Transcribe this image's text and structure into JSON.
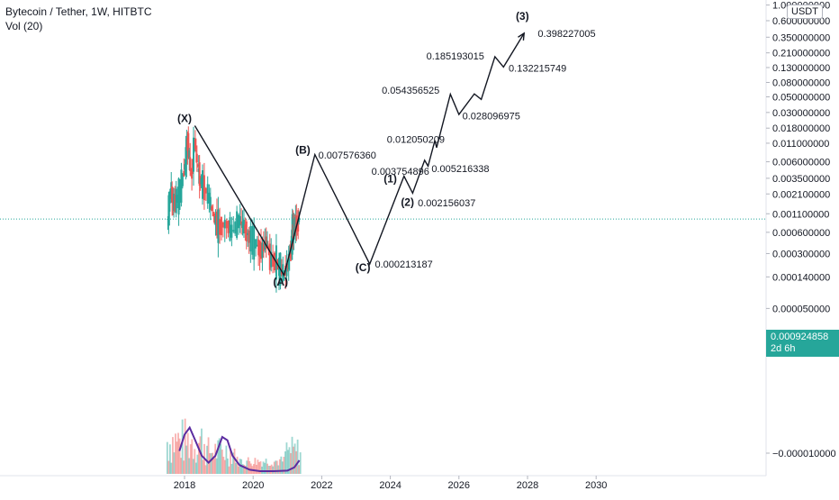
{
  "legend": {
    "title": "Bytecoin / Tether, 1W, HITBTC",
    "volume": "Vol (20)"
  },
  "price_axis": {
    "unit": "USDT"
  },
  "last_price": {
    "value": "0.000924858",
    "countdown": "2d 6h"
  },
  "colors": {
    "up": "#26a69a",
    "down": "#ef5350",
    "line": "#131722",
    "volume_ma": "#5b2ca0",
    "last_price_line": "#26a69a"
  },
  "chart_data": {
    "type": "line",
    "title": "Bytecoin / Tether, 1W, HITBTC",
    "scale": "log",
    "y_ticks": [
      "1.000000000",
      "0.600000000",
      "0.350000000",
      "0.210000000",
      "0.130000000",
      "0.080000000",
      "0.050000000",
      "0.030000000",
      "0.018000000",
      "0.011000000",
      "0.006000000",
      "0.003500000",
      "0.002100000",
      "0.001100000",
      "0.000600000",
      "0.000300000",
      "0.000140000",
      "0.000050000",
      "−0.000010000"
    ],
    "x_ticks": [
      "2018",
      "2020",
      "2022",
      "2024",
      "2026",
      "2028",
      "2030"
    ],
    "wave_path": [
      {
        "x": 2018.3,
        "y": 0.0195
      },
      {
        "x": 2020.9,
        "y": 0.000148
      },
      {
        "x": 2021.8,
        "y": 0.00757636
      },
      {
        "x": 2023.4,
        "y": 0.000213187
      },
      {
        "x": 2024.4,
        "y": 0.003754896
      },
      {
        "x": 2024.65,
        "y": 0.002156037
      },
      {
        "x": 2025.0,
        "y": 0.0063
      },
      {
        "x": 2025.1,
        "y": 0.0052
      },
      {
        "x": 2025.3,
        "y": 0.01205
      },
      {
        "x": 2025.35,
        "y": 0.0095
      },
      {
        "x": 2025.75,
        "y": 0.054356525
      },
      {
        "x": 2026.0,
        "y": 0.028096975
      },
      {
        "x": 2026.45,
        "y": 0.055
      },
      {
        "x": 2026.65,
        "y": 0.046
      },
      {
        "x": 2027.05,
        "y": 0.185193015
      },
      {
        "x": 2027.3,
        "y": 0.132215749
      },
      {
        "x": 2027.9,
        "y": 0.398227005
      }
    ],
    "wave_labels": [
      {
        "text": "(X)",
        "x": 2018.0,
        "y": 0.022
      },
      {
        "text": "(A)",
        "x": 2020.8,
        "y": 0.000105
      },
      {
        "text": "(B)",
        "x": 2021.45,
        "y": 0.0078
      },
      {
        "text": "(C)",
        "x": 2023.2,
        "y": 0.000168
      },
      {
        "text": "(1)",
        "x": 2024.0,
        "y": 0.00305
      },
      {
        "text": "(2)",
        "x": 2024.5,
        "y": 0.00143
      },
      {
        "text": "(3)",
        "x": 2027.85,
        "y": 0.62
      }
    ],
    "value_labels": [
      {
        "text": "0.007576360",
        "x": 2021.9,
        "y": 0.0075
      },
      {
        "text": "0.000213187",
        "x": 2023.55,
        "y": 0.000213
      },
      {
        "text": "0.003754896",
        "x": 2023.45,
        "y": 0.0044
      },
      {
        "text": "0.002156037",
        "x": 2024.8,
        "y": 0.00158
      },
      {
        "text": "0.012050209",
        "x": 2023.9,
        "y": 0.0126
      },
      {
        "text": "0.005216338",
        "x": 2025.2,
        "y": 0.0048
      },
      {
        "text": "0.054356525",
        "x": 2023.75,
        "y": 0.062
      },
      {
        "text": "0.028096975",
        "x": 2026.1,
        "y": 0.027
      },
      {
        "text": "0.185193015",
        "x": 2025.05,
        "y": 0.19
      },
      {
        "text": "0.132215749",
        "x": 2027.45,
        "y": 0.128
      },
      {
        "text": "0.398227005",
        "x": 2028.3,
        "y": 0.395
      }
    ],
    "price_series": [
      {
        "x": 2017.5,
        "y": 0.0008
      },
      {
        "x": 2017.6,
        "y": 0.0025
      },
      {
        "x": 2017.7,
        "y": 0.0015
      },
      {
        "x": 2017.85,
        "y": 0.002
      },
      {
        "x": 2018.0,
        "y": 0.0045
      },
      {
        "x": 2018.1,
        "y": 0.012
      },
      {
        "x": 2018.2,
        "y": 0.0035
      },
      {
        "x": 2018.3,
        "y": 0.012
      },
      {
        "x": 2018.4,
        "y": 0.0048
      },
      {
        "x": 2018.5,
        "y": 0.003
      },
      {
        "x": 2018.7,
        "y": 0.002
      },
      {
        "x": 2018.85,
        "y": 0.001
      },
      {
        "x": 2019.0,
        "y": 0.0007
      },
      {
        "x": 2019.2,
        "y": 0.0008
      },
      {
        "x": 2019.4,
        "y": 0.0006
      },
      {
        "x": 2019.6,
        "y": 0.0009
      },
      {
        "x": 2019.75,
        "y": 0.0007
      },
      {
        "x": 2019.9,
        "y": 0.0005
      },
      {
        "x": 2020.1,
        "y": 0.0004
      },
      {
        "x": 2020.25,
        "y": 0.00032
      },
      {
        "x": 2020.4,
        "y": 0.00045
      },
      {
        "x": 2020.5,
        "y": 0.00025
      },
      {
        "x": 2020.7,
        "y": 0.00022
      },
      {
        "x": 2020.85,
        "y": 0.00016
      },
      {
        "x": 2021.0,
        "y": 0.00018
      },
      {
        "x": 2021.1,
        "y": 0.00035
      },
      {
        "x": 2021.15,
        "y": 0.0006
      },
      {
        "x": 2021.25,
        "y": 0.0008
      },
      {
        "x": 2021.35,
        "y": 0.00092
      }
    ],
    "volume_ma": [
      {
        "x": 2017.85,
        "y": 0.45
      },
      {
        "x": 2018.0,
        "y": 0.8
      },
      {
        "x": 2018.15,
        "y": 0.95
      },
      {
        "x": 2018.3,
        "y": 0.7
      },
      {
        "x": 2018.5,
        "y": 0.35
      },
      {
        "x": 2018.7,
        "y": 0.2
      },
      {
        "x": 2018.9,
        "y": 0.35
      },
      {
        "x": 2019.1,
        "y": 0.75
      },
      {
        "x": 2019.25,
        "y": 0.68
      },
      {
        "x": 2019.4,
        "y": 0.35
      },
      {
        "x": 2019.6,
        "y": 0.15
      },
      {
        "x": 2019.9,
        "y": 0.05
      },
      {
        "x": 2020.2,
        "y": 0.02
      },
      {
        "x": 2020.6,
        "y": 0.02
      },
      {
        "x": 2021.0,
        "y": 0.03
      },
      {
        "x": 2021.2,
        "y": 0.1
      },
      {
        "x": 2021.35,
        "y": 0.25
      }
    ]
  }
}
